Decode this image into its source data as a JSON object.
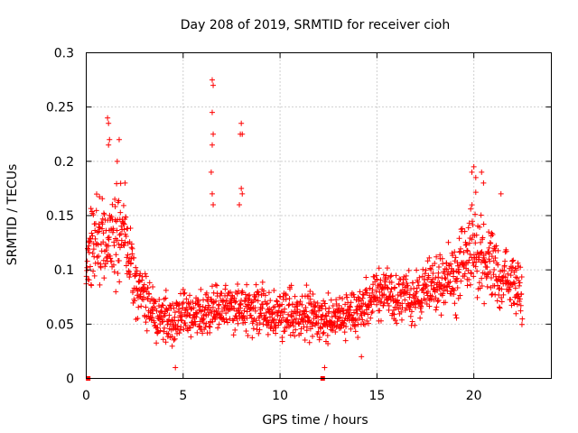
{
  "chart_data": {
    "type": "scatter",
    "title": "Day 208 of 2019, SRMTID for receiver cioh",
    "xlabel": "GPS time / hours",
    "ylabel": "SRMTID / TECUs",
    "xlim": [
      0,
      24
    ],
    "ylim": [
      0,
      0.3
    ],
    "grid": true,
    "marker": "+",
    "color": "#ff0000",
    "x_ticks": [
      0,
      5,
      10,
      15,
      20
    ],
    "x_tick_labels": [
      "0",
      "5",
      "10",
      "15",
      "20"
    ],
    "y_ticks": [
      0,
      0.05,
      0.1,
      0.15,
      0.2,
      0.25,
      0.3
    ],
    "y_tick_labels": [
      "0",
      "0.05",
      "0.1",
      "0.15",
      "0.2",
      "0.25",
      "0.3"
    ],
    "envelope_hours": [
      0,
      0.5,
      1,
      1.5,
      2,
      2.5,
      3,
      3.5,
      4,
      4.5,
      5,
      5.5,
      6,
      6.5,
      7,
      7.5,
      8,
      8.5,
      9,
      9.5,
      10,
      10.5,
      11,
      11.5,
      12,
      12.5,
      13,
      13.5,
      14,
      14.5,
      15,
      15.5,
      16,
      16.5,
      17,
      17.5,
      18,
      18.5,
      19,
      19.5,
      20,
      20.5,
      21,
      21.5,
      22,
      22.5
    ],
    "envelope_center": [
      0.1,
      0.135,
      0.13,
      0.13,
      0.13,
      0.09,
      0.075,
      0.06,
      0.055,
      0.055,
      0.06,
      0.06,
      0.055,
      0.065,
      0.065,
      0.065,
      0.065,
      0.065,
      0.065,
      0.06,
      0.06,
      0.06,
      0.06,
      0.06,
      0.055,
      0.055,
      0.06,
      0.06,
      0.06,
      0.07,
      0.08,
      0.08,
      0.075,
      0.075,
      0.07,
      0.08,
      0.085,
      0.09,
      0.09,
      0.11,
      0.12,
      0.11,
      0.1,
      0.09,
      0.09,
      0.075
    ],
    "envelope_spread": [
      0.03,
      0.04,
      0.04,
      0.04,
      0.04,
      0.03,
      0.025,
      0.02,
      0.02,
      0.02,
      0.02,
      0.02,
      0.02,
      0.02,
      0.02,
      0.02,
      0.02,
      0.02,
      0.02,
      0.02,
      0.02,
      0.02,
      0.02,
      0.02,
      0.02,
      0.02,
      0.02,
      0.02,
      0.02,
      0.02,
      0.02,
      0.02,
      0.02,
      0.02,
      0.02,
      0.02,
      0.025,
      0.025,
      0.03,
      0.035,
      0.04,
      0.035,
      0.03,
      0.025,
      0.025,
      0.025
    ],
    "outlier_points": [
      [
        1.1,
        0.24
      ],
      [
        1.15,
        0.235
      ],
      [
        1.2,
        0.22
      ],
      [
        1.15,
        0.215
      ],
      [
        1.7,
        0.22
      ],
      [
        1.6,
        0.2
      ],
      [
        2.0,
        0.18
      ],
      [
        6.5,
        0.275
      ],
      [
        6.55,
        0.27
      ],
      [
        6.5,
        0.245
      ],
      [
        6.55,
        0.225
      ],
      [
        6.5,
        0.215
      ],
      [
        6.45,
        0.19
      ],
      [
        6.5,
        0.17
      ],
      [
        6.55,
        0.16
      ],
      [
        8.0,
        0.235
      ],
      [
        8.05,
        0.225
      ],
      [
        7.95,
        0.225
      ],
      [
        8.0,
        0.175
      ],
      [
        8.05,
        0.17
      ],
      [
        7.9,
        0.16
      ],
      [
        19.9,
        0.19
      ],
      [
        20.0,
        0.195
      ],
      [
        20.1,
        0.185
      ],
      [
        20.4,
        0.19
      ],
      [
        20.5,
        0.18
      ],
      [
        21.4,
        0.17
      ],
      [
        12.3,
        0.01
      ],
      [
        4.6,
        0.01
      ],
      [
        14.2,
        0.02
      ]
    ],
    "markers_on_axis": [
      0.1,
      12.2
    ]
  }
}
